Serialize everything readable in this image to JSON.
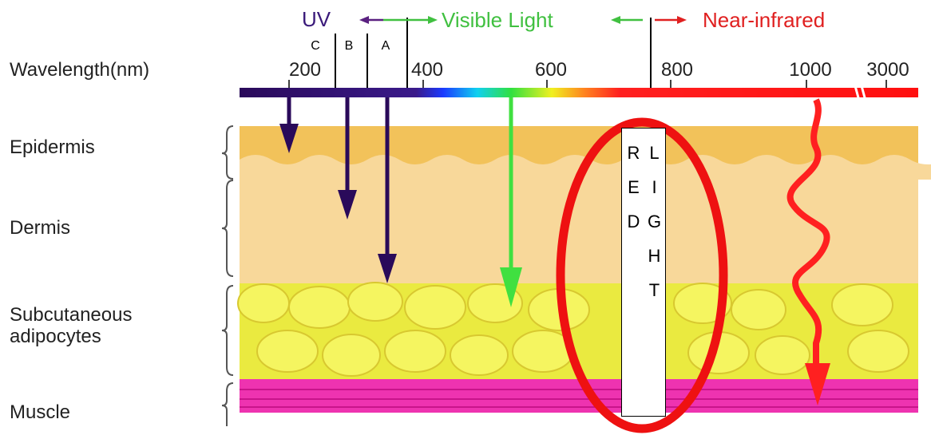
{
  "header": {
    "uv": "UV",
    "visible": "Visible Light",
    "near_infrared": "Near-infrared",
    "wavelength_label": "Wavelength(nm)",
    "uv_bands": [
      "C",
      "B",
      "A"
    ],
    "ticks": [
      "200",
      "400",
      "600",
      "800",
      "1000",
      "3000"
    ]
  },
  "layers": [
    "Epidermis",
    "Dermis",
    "Subcutaneous adipocytes",
    "Muscle"
  ],
  "callout": "RED LIGHT"
}
